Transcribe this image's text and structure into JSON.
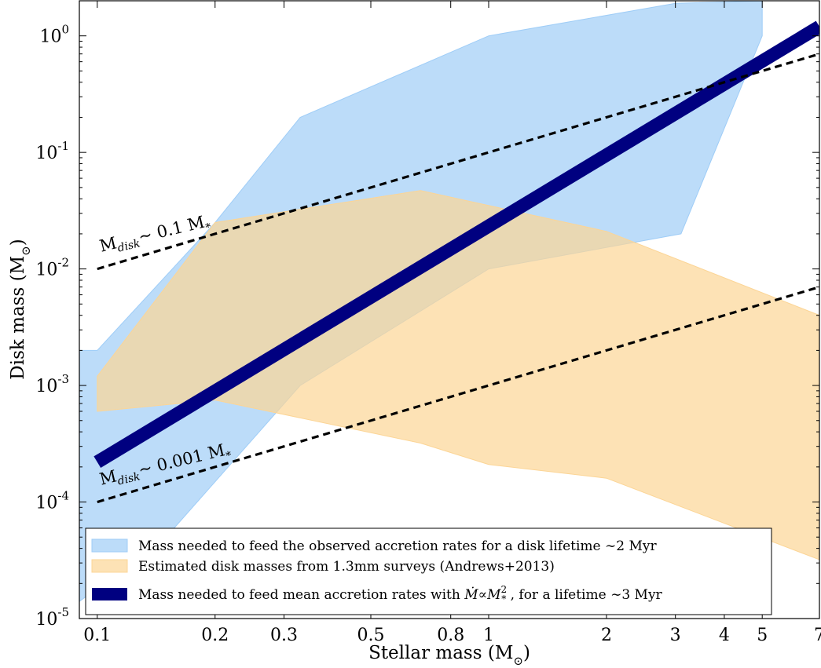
{
  "chart_data": {
    "type": "area",
    "xscale": "log",
    "yscale": "log",
    "xlim": [
      0.09,
      7
    ],
    "ylim": [
      1e-05,
      2
    ],
    "xlabel": "Stellar mass (M",
    "xlabel_sub": "⊙",
    "xlabel_close": ")",
    "ylabel": "Disk mass (M",
    "ylabel_sub": "⊙",
    "ylabel_close": ")",
    "grid": false,
    "legend_position": "lower-left",
    "x_ticks": [
      {
        "value": 0.1,
        "label": "0.1"
      },
      {
        "value": 0.2,
        "label": "0.2"
      },
      {
        "value": 0.3,
        "label": "0.3"
      },
      {
        "value": 0.5,
        "label": "0.5"
      },
      {
        "value": 0.8,
        "label": "0.8"
      },
      {
        "value": 1,
        "label": "1"
      },
      {
        "value": 2,
        "label": "2"
      },
      {
        "value": 3,
        "label": "3"
      },
      {
        "value": 4,
        "label": "4"
      },
      {
        "value": 5,
        "label": "5"
      },
      {
        "value": 7,
        "label": "7"
      }
    ],
    "y_ticks": [
      {
        "value": 1e-05,
        "base": "10",
        "exp": "-5"
      },
      {
        "value": 0.0001,
        "base": "10",
        "exp": "-4"
      },
      {
        "value": 0.001,
        "base": "10",
        "exp": "-3"
      },
      {
        "value": 0.01,
        "base": "10",
        "exp": "-2"
      },
      {
        "value": 0.1,
        "base": "10",
        "exp": "-1"
      },
      {
        "value": 1,
        "base": "10",
        "exp": "0"
      }
    ],
    "series": [
      {
        "name": "Mass needed to feed the observed accretion rates for a disk lifetime ~2 Myr",
        "kind": "band",
        "color": "#9fcdf7",
        "upper": [
          [
            0.09,
            0.002
          ],
          [
            0.1,
            0.002
          ],
          [
            0.2,
            0.025
          ],
          [
            0.33,
            0.2
          ],
          [
            1,
            1.0
          ],
          [
            3,
            1.9
          ],
          [
            5,
            2.0
          ]
        ],
        "lower": [
          [
            5,
            1.0
          ],
          [
            3.1,
            0.02
          ],
          [
            1,
            0.01
          ],
          [
            0.33,
            0.001
          ],
          [
            0.15,
            5e-05
          ],
          [
            0.09,
            1.4e-05
          ]
        ]
      },
      {
        "name": "Estimated disk masses from 1.3mm surveys (Andrews+2013)",
        "kind": "band",
        "color": "#fcd596",
        "upper": [
          [
            0.1,
            0.0012
          ],
          [
            0.2,
            0.025
          ],
          [
            0.67,
            0.047
          ],
          [
            2,
            0.021
          ],
          [
            7,
            0.004
          ]
        ],
        "lower": [
          [
            7,
            3.2e-05
          ],
          [
            2,
            0.00016
          ],
          [
            1,
            0.00021
          ],
          [
            0.67,
            0.00032
          ],
          [
            0.2,
            0.00075
          ],
          [
            0.1,
            0.0006
          ]
        ]
      },
      {
        "name": "Mass needed to feed mean accretion rates with Ṁ∝M*², for a lifetime ~3 Myr",
        "kind": "line",
        "color": "#000080",
        "x": [
          0.1,
          7
        ],
        "y": [
          0.00022,
          1.2
        ]
      },
      {
        "name": "M_disk ~ 0.1 M*",
        "kind": "dashed",
        "color": "#000000",
        "x": [
          0.1,
          7
        ],
        "y": [
          0.01,
          0.7
        ]
      },
      {
        "name": "M_disk ~ 0.001 M*",
        "kind": "dashed",
        "color": "#000000",
        "x": [
          0.1,
          7
        ],
        "y": [
          0.0001,
          0.007
        ]
      }
    ],
    "annotations": [
      {
        "id": "ann1",
        "main": "M",
        "sub": "disk",
        "rest": "∼ 0.1 M",
        "star": "*",
        "x": 0.1,
        "y": 0.014,
        "angle": -13.5
      },
      {
        "id": "ann2",
        "main": "M",
        "sub": "disk",
        "rest": "∼ 0.001 M",
        "star": "*",
        "x": 0.1,
        "y": 0.00014,
        "angle": -13.5
      }
    ],
    "legend": [
      {
        "text": "Mass needed to feed the observed accretion rates for a disk lifetime ∼2 Myr"
      },
      {
        "text": "Estimated disk masses from 1.3mm surveys (Andrews+2013)"
      },
      {
        "pre": "Mass needed to feed mean accretion rates with ",
        "math": "Ṁ∝M",
        "sup": "2",
        "sub": "*",
        "post": " , for a lifetime ∼3 Myr"
      }
    ]
  }
}
